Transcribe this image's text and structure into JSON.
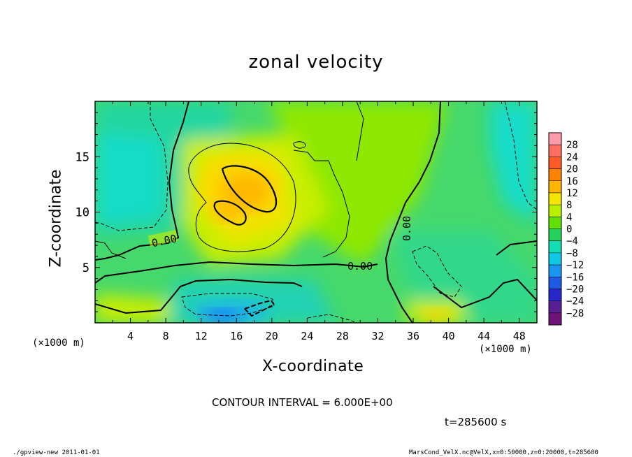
{
  "chart_data": {
    "type": "heatmap",
    "title": "zonal velocity",
    "xlabel": "X-coordinate",
    "ylabel": "Z-coordinate",
    "x_unit_label": "(×1000 m)",
    "xlim": [
      0,
      50
    ],
    "ylim": [
      0,
      20
    ],
    "x_ticks": [
      4,
      8,
      12,
      16,
      20,
      24,
      28,
      32,
      36,
      40,
      44,
      48
    ],
    "y_ticks": [
      5,
      10,
      15
    ],
    "contour_labels": [
      "0.00",
      "0.00",
      "0.00"
    ],
    "colorbar": {
      "levels": [
        28,
        24,
        20,
        16,
        12,
        8,
        4,
        0,
        -4,
        -8,
        -12,
        -16,
        -20,
        -24,
        -28
      ],
      "colors": [
        "#ff9aa8",
        "#ff6e63",
        "#ff5a28",
        "#ff8200",
        "#ffb400",
        "#f5e600",
        "#b9f000",
        "#60e000",
        "#22d25a",
        "#12dcb4",
        "#10c8e6",
        "#1a96f0",
        "#1e5ae6",
        "#2828c8",
        "#5a1e96",
        "#6e1478"
      ]
    },
    "velocity_field": [
      {
        "x": 16.5,
        "z": 12.5,
        "u": 16
      },
      {
        "x": 15.0,
        "z": 10.0,
        "u": 14
      },
      {
        "x": 16.5,
        "z": 1.5,
        "u": -10
      },
      {
        "x": 5.0,
        "z": 13.0,
        "u": -6
      },
      {
        "x": 48.0,
        "z": 14.0,
        "u": -6
      },
      {
        "x": 38.5,
        "z": 1.0,
        "u": 9
      }
    ],
    "annotations": {
      "contour_interval": "CONTOUR INTERVAL = 6.000E+00",
      "time": "t=285600 s"
    }
  },
  "footer": {
    "left": "./gpview-new   2011-01-01",
    "right": "MarsCond_VelX.nc@VelX,x=0:50000,z=0:20000,t=285600"
  }
}
